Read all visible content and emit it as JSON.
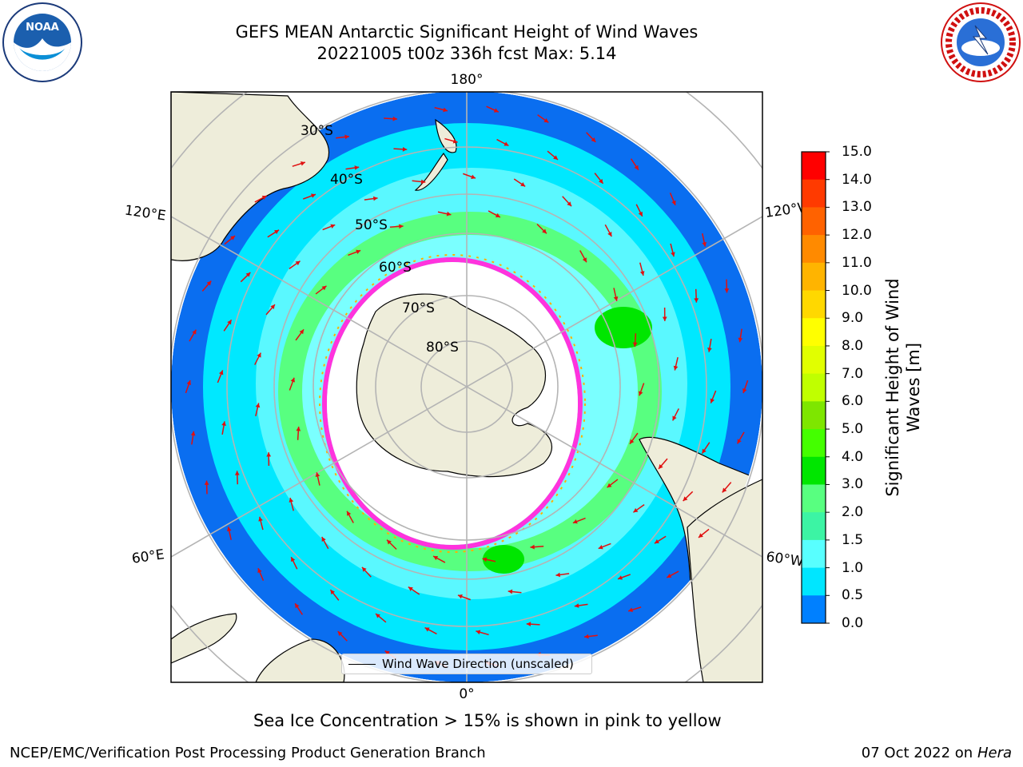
{
  "title": {
    "line1": "GEFS MEAN Antarctic Significant Height of Wind Waves",
    "line2": "20221005 t00z 336h fcst   Max: 5.14"
  },
  "logos": {
    "left": {
      "text": "NOAA"
    },
    "right": {}
  },
  "map": {
    "longitude_labels": {
      "top": "180°",
      "bottom": "0°",
      "left_upper": "120°E",
      "left_lower": "60°E",
      "right_upper": "120°W",
      "right_lower": "60°W"
    },
    "latitude_labels": [
      "30°S",
      "40°S",
      "50°S",
      "60°S",
      "70°S",
      "80°S"
    ],
    "legend_label": "Wind Wave Direction (unscaled)"
  },
  "colorbar": {
    "title_line1": "Significant Height of Wind",
    "title_line2": "Waves [m]",
    "ticks": [
      "15.0",
      "14.0",
      "13.0",
      "12.0",
      "11.0",
      "10.0",
      "9.0",
      "8.0",
      "7.0",
      "6.0",
      "5.0",
      "4.0",
      "3.0",
      "2.0",
      "1.5",
      "1.0",
      "0.5",
      "0.0"
    ],
    "colors": [
      "#ff0000",
      "#ff3a00",
      "#ff6200",
      "#ff8a00",
      "#ffb400",
      "#ffd800",
      "#ffff00",
      "#e1ff00",
      "#c0ff00",
      "#7ee600",
      "#44ff00",
      "#00e600",
      "#58ff80",
      "#3cf4a4",
      "#58ffff",
      "#00e6ff",
      "#0080ff",
      "#0000ff"
    ]
  },
  "colors": {
    "land": "#eeedda",
    "ice_edge": "#ff33dd",
    "arrow": "#e01010"
  },
  "caption": "Sea Ice Concentration > 15% is shown in pink to yellow",
  "footer": {
    "left": "NCEP/EMC/Verification Post Processing Product Generation Branch",
    "right_prefix": "07 Oct 2022 on ",
    "right_host": "Hera"
  }
}
